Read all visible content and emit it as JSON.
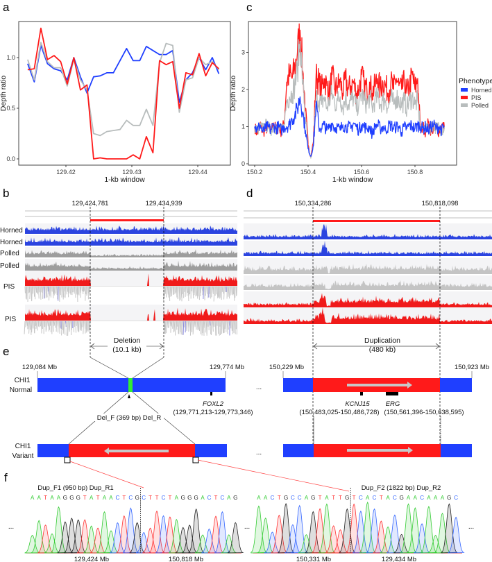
{
  "panel_labels": {
    "a": "a",
    "b": "b",
    "c": "c",
    "d": "d",
    "e": "e",
    "f": "f"
  },
  "chart_data": [
    {
      "type": "line",
      "title": "",
      "xlabel": "1-kb window",
      "ylabel": "Depth ratio",
      "x_start": 129.4142,
      "x_step": 0.001,
      "xlim": [
        129.4128,
        129.4449
      ],
      "ylim": [
        -0.05,
        1.4
      ],
      "xticks": [
        129.42,
        129.43,
        129.44
      ],
      "xtick_labels": [
        "129.42",
        "129.43",
        "129.44"
      ],
      "yticks": [
        0,
        0.5,
        1.0
      ],
      "ytick_labels": [
        "0.0",
        "0.5",
        "1.0"
      ],
      "grid": false,
      "series": [
        {
          "name": "Horned",
          "color": "#1f3fff",
          "values": [
            0.94,
            0.76,
            1.12,
            0.94,
            0.89,
            0.87,
            0.78,
            1.0,
            0.81,
            0.65,
            0.81,
            0.82,
            0.85,
            0.85,
            0.97,
            1.09,
            0.97,
            0.97,
            1.11,
            1.07,
            1.03,
            1.03,
            1.07,
            0.56,
            0.78,
            0.85,
            1.0,
            0.88,
            1.0,
            0.84
          ]
        },
        {
          "name": "Polled",
          "color": "#b8bdbd",
          "values": [
            0.98,
            0.78,
            1.15,
            0.96,
            0.9,
            0.9,
            0.72,
            0.98,
            0.78,
            0.68,
            0.25,
            0.23,
            0.27,
            0.28,
            0.29,
            0.38,
            0.33,
            0.33,
            0.49,
            0.33,
            0.95,
            1.14,
            1.12,
            0.46,
            0.78,
            0.8,
            1.0,
            0.93,
            0.96,
            0.88
          ]
        },
        {
          "name": "PIS",
          "color": "#ff1a1a",
          "values": [
            0.88,
            0.89,
            1.29,
            0.98,
            1.02,
            0.96,
            0.74,
            1.0,
            0.68,
            0.73,
            0.0,
            0.01,
            0.0,
            0.0,
            0.0,
            0.0,
            0.04,
            0.0,
            0.22,
            0.06,
            0.97,
            0.93,
            0.96,
            0.5,
            0.85,
            0.83,
            1.04,
            0.82,
            0.95,
            0.89
          ]
        }
      ]
    },
    {
      "type": "line",
      "title": "",
      "xlabel": "1-kb window",
      "ylabel": "Depth ratio",
      "x_start": 150.2,
      "x_step": 0.01,
      "xlim": [
        150.17,
        150.95
      ],
      "ylim": [
        0,
        3.8
      ],
      "xticks": [
        150.2,
        150.4,
        150.6,
        150.8
      ],
      "xtick_labels": [
        "150.2",
        "150.4",
        "150.6",
        "150.8"
      ],
      "yticks": [
        0,
        1,
        2,
        3
      ],
      "ytick_labels": [
        "0",
        "1",
        "2",
        "3"
      ],
      "grid": false,
      "legend": {
        "title": "Phenotype",
        "placement": "right"
      },
      "series": [
        {
          "name": "Horned",
          "color": "#1f3fff",
          "values": [
            1.0,
            0.9,
            1.05,
            0.85,
            0.95,
            1.0,
            0.9,
            1.05,
            0.95,
            1.0,
            0.9,
            1.0,
            1.0,
            1.05,
            1.2,
            1.3,
            1.5,
            1.8,
            1.4,
            0.9,
            0.4,
            0.2,
            0.5,
            1.6,
            1.0,
            0.95,
            1.05,
            0.9,
            1.0,
            1.1,
            0.95,
            1.0,
            0.9,
            1.05,
            1.0,
            1.0,
            0.95,
            1.1,
            1.0,
            0.9,
            1.05,
            1.0,
            0.95,
            1.0,
            0.8,
            1.0,
            1.05,
            0.95,
            1.0,
            0.9,
            1.0,
            1.05,
            0.95,
            1.0,
            1.0,
            0.85,
            1.0,
            0.95,
            1.05,
            1.0,
            0.95,
            1.05,
            1.0,
            0.95,
            1.0,
            0.9,
            1.0,
            1.05,
            0.95,
            1.0,
            0.9,
            1.0
          ]
        },
        {
          "name": "PIS",
          "color": "#ff1a1a",
          "values": [
            1.0,
            0.8,
            1.1,
            0.85,
            0.9,
            1.0,
            0.85,
            1.1,
            0.9,
            1.0,
            0.85,
            1.1,
            2.2,
            2.4,
            2.3,
            2.6,
            3.0,
            3.6,
            2.5,
            1.5,
            0.5,
            0.2,
            0.6,
            2.4,
            2.2,
            2.0,
            2.3,
            2.1,
            1.9,
            2.4,
            2.0,
            2.1,
            2.2,
            1.9,
            2.3,
            2.0,
            2.1,
            2.2,
            1.9,
            2.0,
            2.4,
            2.1,
            2.0,
            2.2,
            1.9,
            2.1,
            2.3,
            2.0,
            2.2,
            2.1,
            1.9,
            2.2,
            2.0,
            2.3,
            2.1,
            2.0,
            2.2,
            1.9,
            2.1,
            2.4,
            2.0,
            2.3,
            0.9,
            1.0,
            0.85,
            1.1,
            0.9,
            0.95,
            1.0,
            0.85,
            1.05,
            0.95
          ]
        },
        {
          "name": "Polled",
          "color": "#b8bdbd",
          "values": [
            1.0,
            0.9,
            1.0,
            0.95,
            1.05,
            1.0,
            0.9,
            1.0,
            0.95,
            1.0,
            0.9,
            1.0,
            1.7,
            1.8,
            1.9,
            2.1,
            2.6,
            3.3,
            2.2,
            1.3,
            0.4,
            0.15,
            0.5,
            1.8,
            1.7,
            1.6,
            1.8,
            1.5,
            1.7,
            1.9,
            1.6,
            1.7,
            1.8,
            1.5,
            1.8,
            1.6,
            1.7,
            1.8,
            1.5,
            1.6,
            1.9,
            1.7,
            1.6,
            1.8,
            1.5,
            1.7,
            1.8,
            1.6,
            1.7,
            1.7,
            1.5,
            1.8,
            1.6,
            1.8,
            1.7,
            1.6,
            1.7,
            1.5,
            1.7,
            1.8,
            1.6,
            1.7,
            1.0,
            0.95,
            1.0,
            0.9,
            1.0,
            1.05,
            0.95,
            1.0,
            0.9,
            1.0
          ]
        }
      ]
    }
  ],
  "panel_b": {
    "start": "129,424,781",
    "end": "129,434,939",
    "tracks": [
      "Horned",
      "Horned",
      "Polled",
      "Polled",
      "PIS",
      "PIS"
    ],
    "event": "Deletion",
    "size": "(10.1 kb)"
  },
  "panel_d": {
    "start": "150,334,286",
    "end": "150,818,098",
    "event": "Duplication",
    "size": "(480 kb)"
  },
  "panel_e": {
    "left_start": "129,084 Mb",
    "left_end": "129,774 Mb",
    "right_start": "150,229 Mb",
    "right_end": "150,923 Mb",
    "normal_label": [
      "CHI1",
      "Normal"
    ],
    "variant_label": [
      "CHI1",
      "Variant"
    ],
    "ellipsis": "...",
    "foxl2": {
      "name": "FOXL2",
      "coords": "(129,771,213-129,773,346)"
    },
    "kcnj15": {
      "name": "KCNJ15",
      "coords": "(150,483,025-150,486,728)"
    },
    "erg": {
      "name": "ERG",
      "coords": "(150,561,396-150,638,595)"
    },
    "primers": "Del_F (369 bp) Del_R",
    "colors": {
      "normal": "#1f3fff",
      "variant": "#ff1a1a",
      "deletion": "#33ee33",
      "arrow": "#c8c8c8"
    }
  },
  "panel_f": {
    "left": {
      "primers": "Dup_F1 (950 bp) Dup_R1",
      "sequence": "AATAAGGGTATAACTCGCTTCTAGGGACTCAG",
      "break_after": 17,
      "pos_left": "129,424 Mb",
      "pos_right": "150,818 Mb"
    },
    "right": {
      "primers": "Dup_F2 (1822 bp) Dup_R2",
      "sequence": "AACTGCCAGTATTGTCACTACGAACAAAGC",
      "break_after": 14,
      "pos_left": "150,331 Mb",
      "pos_right": "129,434 Mb"
    },
    "ellipsis": "...",
    "base_colors": {
      "A": "#33cc33",
      "C": "#3366ff",
      "G": "#222222",
      "T": "#ff3333"
    }
  }
}
